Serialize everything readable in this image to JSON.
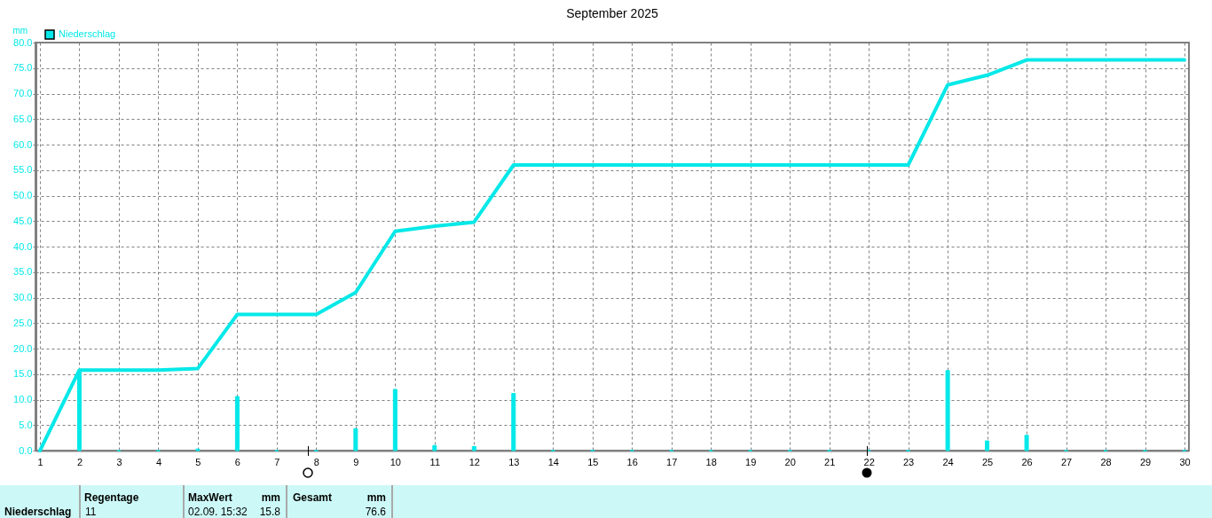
{
  "chart_data": {
    "type": "bar",
    "title": "September 2025",
    "ylabel": "mm",
    "x": [
      1,
      2,
      3,
      4,
      5,
      6,
      7,
      8,
      9,
      10,
      11,
      12,
      13,
      14,
      15,
      16,
      17,
      18,
      19,
      20,
      21,
      22,
      23,
      24,
      25,
      26,
      27,
      28,
      29,
      30
    ],
    "series": [
      {
        "name": "Niederschlag",
        "color": "#05e8e8",
        "values": [
          0,
          15.8,
          0,
          0,
          0.3,
          10.6,
          0,
          0,
          4.3,
          12.0,
          1.0,
          0.8,
          11.2,
          0,
          0,
          0,
          0,
          0,
          0,
          0,
          0,
          0,
          0,
          15.7,
          1.9,
          3.0,
          0,
          0,
          0,
          0
        ]
      },
      {
        "type": "line",
        "color": "#05e8e8",
        "values": [
          0,
          15.8,
          15.8,
          15.8,
          16.1,
          26.7,
          26.7,
          26.7,
          31.0,
          43.0,
          44.0,
          44.8,
          56.0,
          56.0,
          56.0,
          56.0,
          56.0,
          56.0,
          56.0,
          56.0,
          56.0,
          56.0,
          56.0,
          71.7,
          73.6,
          76.6,
          76.6,
          76.6,
          76.6,
          76.6
        ]
      }
    ],
    "xlim": [
      1,
      30
    ],
    "xticks": [
      1,
      2,
      3,
      4,
      5,
      6,
      7,
      8,
      9,
      10,
      11,
      12,
      13,
      14,
      15,
      16,
      17,
      18,
      19,
      20,
      21,
      22,
      23,
      24,
      25,
      26,
      27,
      28,
      29,
      30
    ],
    "ylim": [
      0,
      80
    ],
    "yticks": [
      {
        "value": 0,
        "label": "0.0"
      },
      {
        "value": 5,
        "label": "5.0"
      },
      {
        "value": 10,
        "label": "10.0"
      },
      {
        "value": 15,
        "label": "15.0"
      },
      {
        "value": 20,
        "label": "20.0"
      },
      {
        "value": 25,
        "label": "25.0"
      },
      {
        "value": 30,
        "label": "30.0"
      },
      {
        "value": 35,
        "label": "35.0"
      },
      {
        "value": 40,
        "label": "40.0"
      },
      {
        "value": 45,
        "label": "45.0"
      },
      {
        "value": 50,
        "label": "50.0"
      },
      {
        "value": 55,
        "label": "55.0"
      },
      {
        "value": 60,
        "label": "60.0"
      },
      {
        "value": 65,
        "label": "65.0"
      },
      {
        "value": 70,
        "label": "70.0"
      },
      {
        "value": 75,
        "label": "75.0"
      },
      {
        "value": 80,
        "label": "80.0"
      }
    ],
    "grid": true,
    "legend": "top left",
    "annotations": [
      "Niederschlag",
      "Regentage",
      "11",
      "MaxWert",
      "mm",
      "02.09. 15:32",
      "15.8",
      "Gesamt",
      "mm",
      "76.6"
    ]
  }
}
